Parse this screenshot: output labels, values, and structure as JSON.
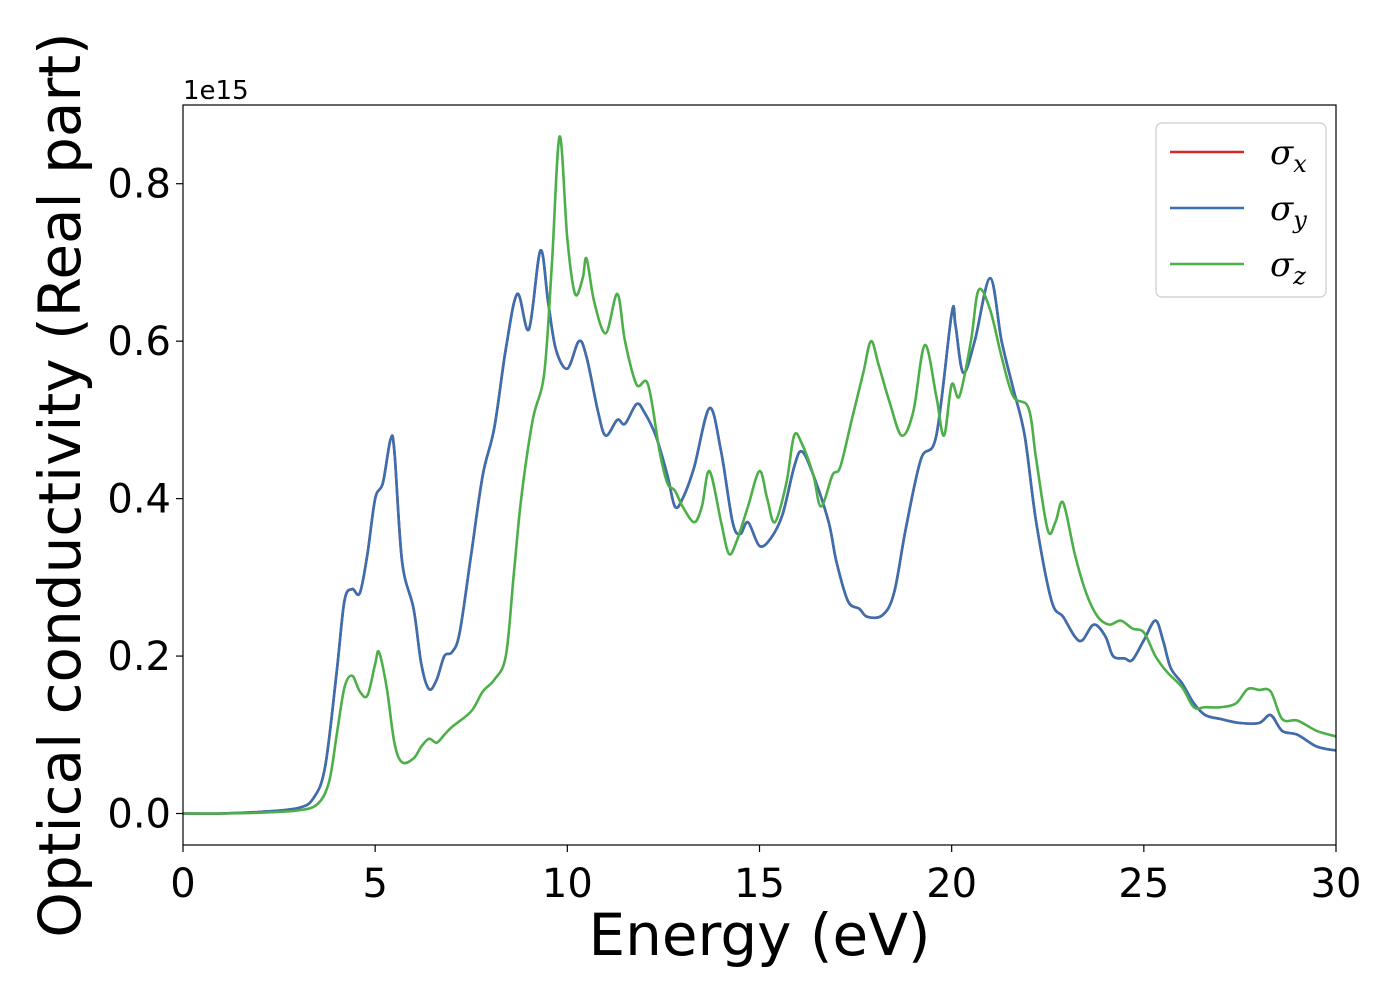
{
  "chart_data": {
    "type": "line",
    "xlabel": "Energy (eV)",
    "ylabel": "Optical conductivity (Real part)",
    "y_offset_label": "1e15",
    "xlim": [
      0,
      30
    ],
    "ylim": [
      -0.04,
      0.9
    ],
    "xticks": [
      "0",
      "5",
      "10",
      "15",
      "20",
      "25",
      "30"
    ],
    "yticks": [
      "0.0",
      "0.2",
      "0.4",
      "0.6",
      "0.8"
    ],
    "grid": false,
    "legend_position": "top-right",
    "series": [
      {
        "name": "σx",
        "label_main": "σ",
        "label_sub": "x",
        "color": "#d62728",
        "points": [
          [
            0,
            0
          ],
          [
            1,
            0
          ],
          [
            2,
            0.002
          ],
          [
            3,
            0.007
          ],
          [
            3.4,
            0.02
          ],
          [
            3.7,
            0.06
          ],
          [
            4,
            0.18
          ],
          [
            4.2,
            0.27
          ],
          [
            4.4,
            0.285
          ],
          [
            4.6,
            0.28
          ],
          [
            4.8,
            0.33
          ],
          [
            5,
            0.4
          ],
          [
            5.2,
            0.42
          ],
          [
            5.4,
            0.475
          ],
          [
            5.5,
            0.46
          ],
          [
            5.7,
            0.32
          ],
          [
            6,
            0.26
          ],
          [
            6.2,
            0.19
          ],
          [
            6.4,
            0.158
          ],
          [
            6.6,
            0.17
          ],
          [
            6.8,
            0.2
          ],
          [
            7,
            0.205
          ],
          [
            7.2,
            0.23
          ],
          [
            7.5,
            0.33
          ],
          [
            7.8,
            0.43
          ],
          [
            8.1,
            0.49
          ],
          [
            8.4,
            0.59
          ],
          [
            8.7,
            0.66
          ],
          [
            9,
            0.615
          ],
          [
            9.3,
            0.715
          ],
          [
            9.5,
            0.65
          ],
          [
            9.7,
            0.59
          ],
          [
            10,
            0.565
          ],
          [
            10.3,
            0.6
          ],
          [
            10.5,
            0.58
          ],
          [
            10.8,
            0.51
          ],
          [
            11,
            0.48
          ],
          [
            11.3,
            0.5
          ],
          [
            11.5,
            0.495
          ],
          [
            11.8,
            0.52
          ],
          [
            12,
            0.51
          ],
          [
            12.3,
            0.48
          ],
          [
            12.6,
            0.43
          ],
          [
            12.8,
            0.39
          ],
          [
            13,
            0.4
          ],
          [
            13.3,
            0.44
          ],
          [
            13.7,
            0.515
          ],
          [
            14,
            0.46
          ],
          [
            14.3,
            0.37
          ],
          [
            14.5,
            0.355
          ],
          [
            14.7,
            0.37
          ],
          [
            15,
            0.34
          ],
          [
            15.3,
            0.35
          ],
          [
            15.6,
            0.38
          ],
          [
            15.9,
            0.44
          ],
          [
            16.1,
            0.46
          ],
          [
            16.4,
            0.43
          ],
          [
            16.8,
            0.37
          ],
          [
            17,
            0.32
          ],
          [
            17.3,
            0.27
          ],
          [
            17.6,
            0.26
          ],
          [
            17.8,
            0.25
          ],
          [
            18.2,
            0.252
          ],
          [
            18.5,
            0.28
          ],
          [
            18.8,
            0.36
          ],
          [
            19.2,
            0.45
          ],
          [
            19.6,
            0.48
          ],
          [
            20,
            0.635
          ],
          [
            20.1,
            0.62
          ],
          [
            20.3,
            0.56
          ],
          [
            20.6,
            0.6
          ],
          [
            21,
            0.68
          ],
          [
            21.3,
            0.6
          ],
          [
            21.6,
            0.54
          ],
          [
            21.9,
            0.48
          ],
          [
            22.2,
            0.37
          ],
          [
            22.6,
            0.27
          ],
          [
            22.9,
            0.25
          ],
          [
            23.2,
            0.225
          ],
          [
            23.4,
            0.22
          ],
          [
            23.7,
            0.24
          ],
          [
            24,
            0.225
          ],
          [
            24.2,
            0.2
          ],
          [
            24.5,
            0.197
          ],
          [
            24.7,
            0.195
          ],
          [
            25,
            0.22
          ],
          [
            25.3,
            0.245
          ],
          [
            25.5,
            0.22
          ],
          [
            25.7,
            0.185
          ],
          [
            26,
            0.165
          ],
          [
            26.3,
            0.14
          ],
          [
            26.6,
            0.125
          ],
          [
            27,
            0.12
          ],
          [
            27.5,
            0.115
          ],
          [
            28,
            0.115
          ],
          [
            28.3,
            0.125
          ],
          [
            28.6,
            0.105
          ],
          [
            29,
            0.1
          ],
          [
            29.5,
            0.085
          ],
          [
            30,
            0.08
          ]
        ]
      },
      {
        "name": "σy",
        "label_main": "σ",
        "label_sub": "y",
        "color": "#3a6fb0",
        "points": [
          [
            0,
            0
          ],
          [
            1,
            0
          ],
          [
            2,
            0.002
          ],
          [
            3,
            0.007
          ],
          [
            3.4,
            0.02
          ],
          [
            3.7,
            0.06
          ],
          [
            4,
            0.18
          ],
          [
            4.2,
            0.27
          ],
          [
            4.4,
            0.285
          ],
          [
            4.6,
            0.28
          ],
          [
            4.8,
            0.33
          ],
          [
            5,
            0.4
          ],
          [
            5.2,
            0.42
          ],
          [
            5.4,
            0.475
          ],
          [
            5.5,
            0.46
          ],
          [
            5.7,
            0.32
          ],
          [
            6,
            0.26
          ],
          [
            6.2,
            0.19
          ],
          [
            6.4,
            0.158
          ],
          [
            6.6,
            0.17
          ],
          [
            6.8,
            0.2
          ],
          [
            7,
            0.205
          ],
          [
            7.2,
            0.23
          ],
          [
            7.5,
            0.33
          ],
          [
            7.8,
            0.43
          ],
          [
            8.1,
            0.49
          ],
          [
            8.4,
            0.59
          ],
          [
            8.7,
            0.66
          ],
          [
            9,
            0.615
          ],
          [
            9.3,
            0.715
          ],
          [
            9.5,
            0.65
          ],
          [
            9.7,
            0.59
          ],
          [
            10,
            0.565
          ],
          [
            10.3,
            0.6
          ],
          [
            10.5,
            0.58
          ],
          [
            10.8,
            0.51
          ],
          [
            11,
            0.48
          ],
          [
            11.3,
            0.5
          ],
          [
            11.5,
            0.495
          ],
          [
            11.8,
            0.52
          ],
          [
            12,
            0.51
          ],
          [
            12.3,
            0.48
          ],
          [
            12.6,
            0.43
          ],
          [
            12.8,
            0.39
          ],
          [
            13,
            0.4
          ],
          [
            13.3,
            0.44
          ],
          [
            13.7,
            0.515
          ],
          [
            14,
            0.46
          ],
          [
            14.3,
            0.37
          ],
          [
            14.5,
            0.355
          ],
          [
            14.7,
            0.37
          ],
          [
            15,
            0.34
          ],
          [
            15.3,
            0.35
          ],
          [
            15.6,
            0.38
          ],
          [
            15.9,
            0.44
          ],
          [
            16.1,
            0.46
          ],
          [
            16.4,
            0.43
          ],
          [
            16.8,
            0.37
          ],
          [
            17,
            0.32
          ],
          [
            17.3,
            0.27
          ],
          [
            17.6,
            0.26
          ],
          [
            17.8,
            0.25
          ],
          [
            18.2,
            0.252
          ],
          [
            18.5,
            0.28
          ],
          [
            18.8,
            0.36
          ],
          [
            19.2,
            0.45
          ],
          [
            19.6,
            0.48
          ],
          [
            20,
            0.635
          ],
          [
            20.1,
            0.62
          ],
          [
            20.3,
            0.56
          ],
          [
            20.6,
            0.6
          ],
          [
            21,
            0.68
          ],
          [
            21.3,
            0.6
          ],
          [
            21.6,
            0.54
          ],
          [
            21.9,
            0.48
          ],
          [
            22.2,
            0.37
          ],
          [
            22.6,
            0.27
          ],
          [
            22.9,
            0.25
          ],
          [
            23.2,
            0.225
          ],
          [
            23.4,
            0.22
          ],
          [
            23.7,
            0.24
          ],
          [
            24,
            0.225
          ],
          [
            24.2,
            0.2
          ],
          [
            24.5,
            0.197
          ],
          [
            24.7,
            0.195
          ],
          [
            25,
            0.22
          ],
          [
            25.3,
            0.245
          ],
          [
            25.5,
            0.22
          ],
          [
            25.7,
            0.185
          ],
          [
            26,
            0.165
          ],
          [
            26.3,
            0.14
          ],
          [
            26.6,
            0.125
          ],
          [
            27,
            0.12
          ],
          [
            27.5,
            0.115
          ],
          [
            28,
            0.115
          ],
          [
            28.3,
            0.125
          ],
          [
            28.6,
            0.105
          ],
          [
            29,
            0.1
          ],
          [
            29.5,
            0.085
          ],
          [
            30,
            0.08
          ]
        ]
      },
      {
        "name": "σz",
        "label_main": "σ",
        "label_sub": "z",
        "color": "#4daf4a",
        "points": [
          [
            0,
            0
          ],
          [
            1,
            0
          ],
          [
            2,
            0.001
          ],
          [
            3,
            0.004
          ],
          [
            3.5,
            0.012
          ],
          [
            3.8,
            0.04
          ],
          [
            4,
            0.1
          ],
          [
            4.2,
            0.16
          ],
          [
            4.4,
            0.175
          ],
          [
            4.6,
            0.155
          ],
          [
            4.8,
            0.15
          ],
          [
            5,
            0.19
          ],
          [
            5.1,
            0.205
          ],
          [
            5.3,
            0.16
          ],
          [
            5.5,
            0.09
          ],
          [
            5.7,
            0.065
          ],
          [
            6,
            0.07
          ],
          [
            6.2,
            0.085
          ],
          [
            6.4,
            0.095
          ],
          [
            6.6,
            0.09
          ],
          [
            6.8,
            0.1
          ],
          [
            7,
            0.11
          ],
          [
            7.5,
            0.13
          ],
          [
            7.8,
            0.155
          ],
          [
            8.1,
            0.17
          ],
          [
            8.4,
            0.2
          ],
          [
            8.6,
            0.3
          ],
          [
            8.8,
            0.4
          ],
          [
            9.1,
            0.5
          ],
          [
            9.4,
            0.56
          ],
          [
            9.6,
            0.7
          ],
          [
            9.8,
            0.86
          ],
          [
            10,
            0.73
          ],
          [
            10.2,
            0.66
          ],
          [
            10.4,
            0.68
          ],
          [
            10.5,
            0.705
          ],
          [
            10.7,
            0.65
          ],
          [
            11,
            0.61
          ],
          [
            11.3,
            0.66
          ],
          [
            11.5,
            0.6
          ],
          [
            11.8,
            0.545
          ],
          [
            12.1,
            0.545
          ],
          [
            12.4,
            0.46
          ],
          [
            12.6,
            0.42
          ],
          [
            12.8,
            0.41
          ],
          [
            13,
            0.39
          ],
          [
            13.3,
            0.37
          ],
          [
            13.5,
            0.39
          ],
          [
            13.7,
            0.435
          ],
          [
            14,
            0.37
          ],
          [
            14.2,
            0.33
          ],
          [
            14.4,
            0.345
          ],
          [
            14.7,
            0.39
          ],
          [
            15,
            0.435
          ],
          [
            15.2,
            0.4
          ],
          [
            15.4,
            0.37
          ],
          [
            15.7,
            0.42
          ],
          [
            15.9,
            0.48
          ],
          [
            16.1,
            0.47
          ],
          [
            16.4,
            0.43
          ],
          [
            16.6,
            0.39
          ],
          [
            16.9,
            0.43
          ],
          [
            17.1,
            0.44
          ],
          [
            17.4,
            0.5
          ],
          [
            17.7,
            0.56
          ],
          [
            17.9,
            0.6
          ],
          [
            18.1,
            0.57
          ],
          [
            18.4,
            0.52
          ],
          [
            18.7,
            0.48
          ],
          [
            19,
            0.51
          ],
          [
            19.3,
            0.595
          ],
          [
            19.6,
            0.53
          ],
          [
            19.8,
            0.48
          ],
          [
            20,
            0.545
          ],
          [
            20.2,
            0.53
          ],
          [
            20.5,
            0.6
          ],
          [
            20.7,
            0.665
          ],
          [
            21,
            0.64
          ],
          [
            21.3,
            0.58
          ],
          [
            21.6,
            0.53
          ],
          [
            22,
            0.515
          ],
          [
            22.2,
            0.45
          ],
          [
            22.5,
            0.36
          ],
          [
            22.7,
            0.37
          ],
          [
            22.9,
            0.395
          ],
          [
            23.2,
            0.33
          ],
          [
            23.5,
            0.28
          ],
          [
            23.8,
            0.25
          ],
          [
            24.1,
            0.24
          ],
          [
            24.4,
            0.245
          ],
          [
            24.7,
            0.235
          ],
          [
            25,
            0.23
          ],
          [
            25.3,
            0.2
          ],
          [
            25.6,
            0.18
          ],
          [
            26,
            0.16
          ],
          [
            26.3,
            0.135
          ],
          [
            26.6,
            0.135
          ],
          [
            27,
            0.135
          ],
          [
            27.4,
            0.14
          ],
          [
            27.7,
            0.158
          ],
          [
            28,
            0.157
          ],
          [
            28.3,
            0.155
          ],
          [
            28.6,
            0.12
          ],
          [
            29,
            0.118
          ],
          [
            29.5,
            0.105
          ],
          [
            30,
            0.098
          ]
        ]
      }
    ]
  }
}
